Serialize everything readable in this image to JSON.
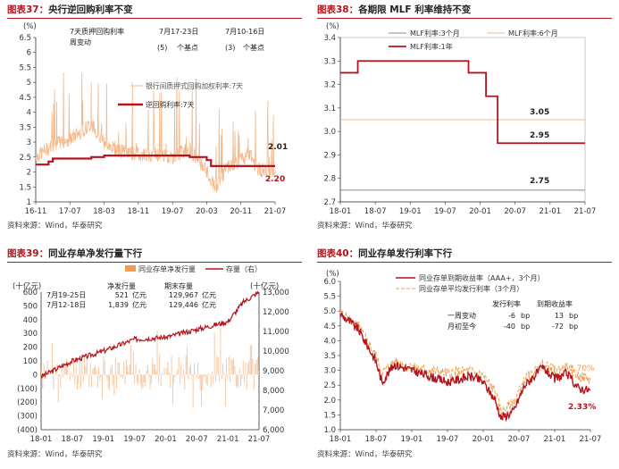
{
  "charts": [
    {
      "id": "p37",
      "fig_label": "图表37：",
      "title": "央行逆回购利率不变",
      "source": "资料来源：Wind，华泰研究",
      "unit_label": "(%)",
      "legend": [
        "银行间质押式回购加权利率:7天",
        "逆回购利率:7天"
      ],
      "ann_header": [
        "7天质押回购利率",
        "周变动"
      ],
      "ann_cols": [
        {
          "date": "7月17-23日",
          "val": "(5)",
          "unit": "个基点"
        },
        {
          "date": "7月10-16日",
          "val": "(3)",
          "unit": "个基点"
        }
      ],
      "end_labels": [
        "2.01",
        "2.20"
      ]
    },
    {
      "id": "p38",
      "fig_label": "图表38：",
      "title": "各期限 MLF 利率维持不变",
      "source": "资料来源：Wind，华泰研究",
      "unit_label": "(%)",
      "legend": [
        "MLF利率:3个月",
        "MLF利率:6个月",
        "MLF利率:1年"
      ],
      "end_labels": [
        "3.05",
        "2.95",
        "2.75"
      ]
    },
    {
      "id": "p39",
      "fig_label": "图表39：",
      "title": "同业存单净发行量下行",
      "source": "资料来源：Wind，华泰研究",
      "unit_left": "(十亿元)",
      "unit_right": "(十亿元)",
      "legend": [
        "同业存单净发行量",
        "存量（右）"
      ],
      "tbl_header": [
        "净发行量",
        "期末存量"
      ],
      "tbl_rows": [
        {
          "date": "7月19-25日",
          "net": "521",
          "u1": "亿元",
          "stock": "129,967",
          "u2": "亿元"
        },
        {
          "date": "7月12-18日",
          "net": "1,839",
          "u1": "亿元",
          "stock": "129,446",
          "u2": "亿元"
        }
      ]
    },
    {
      "id": "p40",
      "fig_label": "图表40：",
      "title": "同业存单发行利率下行",
      "source": "资料来源：Wind，华泰研究",
      "unit_label": "(%)",
      "legend": [
        "同业存单到期收益率（AAA+，3个月）",
        "同业存单平均发行利率（3个月）"
      ],
      "tbl_header": [
        "发行利率",
        "到期收益率"
      ],
      "tbl_rows": [
        {
          "label": "一周变动",
          "a": "-6",
          "ua": "bp",
          "b": "13",
          "ub": "bp"
        },
        {
          "label": "月初至今",
          "a": "-40",
          "ua": "bp",
          "b": "-72",
          "ub": "bp"
        }
      ],
      "end_labels": [
        "2.70%",
        "2.33%"
      ]
    }
  ],
  "colors": {
    "red": "#b5141c",
    "orange": "#f39c4a",
    "peach": "#f5b88a",
    "grey": "#888888"
  },
  "chart_data": [
    {
      "type": "line",
      "ylim": [
        1,
        6.5
      ],
      "yticks": [
        "1",
        "1.5",
        "2",
        "2.5",
        "3",
        "3.5",
        "4",
        "4.5",
        "5",
        "5.5",
        "6",
        "6.5"
      ],
      "xticks": [
        "16-11",
        "17-07",
        "18-03",
        "18-11",
        "19-07",
        "20-03",
        "20-11",
        "21-07"
      ],
      "x_start": "2016-11",
      "x_end": "2021-07",
      "series": [
        {
          "name": "逆回购利率:7天",
          "steps": [
            [
              "2016-11",
              2.25
            ],
            [
              "2017-02",
              2.35
            ],
            [
              "2017-03",
              2.45
            ],
            [
              "2017-12",
              2.5
            ],
            [
              "2018-03",
              2.55
            ],
            [
              "2019-11",
              2.5
            ],
            [
              "2020-03",
              2.4
            ],
            [
              "2020-04",
              2.2
            ],
            [
              "2021-07",
              2.2
            ]
          ]
        },
        {
          "name": "银行间质押式回购加权利率:7天",
          "approx": true,
          "points": [
            [
              "2016-11",
              2.5
            ],
            [
              "2017-03",
              2.9
            ],
            [
              "2017-07",
              3.1
            ],
            [
              "2017-12",
              3.6
            ],
            [
              "2018-03",
              3.0
            ],
            [
              "2018-07",
              2.7
            ],
            [
              "2018-11",
              2.6
            ],
            [
              "2019-03",
              2.6
            ],
            [
              "2019-07",
              2.5
            ],
            [
              "2019-11",
              2.8
            ],
            [
              "2020-03",
              2.0
            ],
            [
              "2020-05",
              1.45
            ],
            [
              "2020-08",
              2.2
            ],
            [
              "2020-11",
              2.4
            ],
            [
              "2021-01",
              2.6
            ],
            [
              "2021-03",
              2.1
            ],
            [
              "2021-07",
              2.01
            ]
          ]
        }
      ]
    },
    {
      "type": "line",
      "ylim": [
        2.7,
        3.4
      ],
      "yticks": [
        "2.7",
        "2.8",
        "2.9",
        "3.0",
        "3.1",
        "3.2",
        "3.3",
        "3.4"
      ],
      "xticks": [
        "18-01",
        "18-07",
        "19-01",
        "19-07",
        "20-01",
        "20-07",
        "21-01",
        "21-07"
      ],
      "x_start": "2018-01",
      "x_end": "2021-07",
      "series": [
        {
          "name": "MLF利率:3个月",
          "steps": [
            [
              "2018-01",
              2.75
            ],
            [
              "2021-07",
              2.75
            ]
          ]
        },
        {
          "name": "MLF利率:6个月",
          "steps": [
            [
              "2018-01",
              3.05
            ],
            [
              "2021-07",
              3.05
            ]
          ]
        },
        {
          "name": "MLF利率:1年",
          "steps": [
            [
              "2018-01",
              3.25
            ],
            [
              "2018-04",
              3.3
            ],
            [
              "2019-11",
              3.25
            ],
            [
              "2020-02",
              3.15
            ],
            [
              "2020-04",
              2.95
            ],
            [
              "2021-07",
              2.95
            ]
          ]
        }
      ]
    },
    {
      "type": "bar+line",
      "ylim_left": [
        -400,
        600
      ],
      "yticks_left": [
        "(400)",
        "(300)",
        "(200)",
        "(100)",
        "0",
        "100",
        "200",
        "300",
        "400",
        "500",
        "600"
      ],
      "ylim_right": [
        6000,
        13000
      ],
      "yticks_right": [
        "6,000",
        "7,000",
        "8,000",
        "9,000",
        "10,000",
        "11,000",
        "12,000",
        "13,000"
      ],
      "xticks": [
        "18-01",
        "18-07",
        "19-01",
        "19-07",
        "20-01",
        "20-07",
        "21-01",
        "21-07"
      ],
      "x_start": "2018-01",
      "x_end": "2021-07",
      "series": [
        {
          "name": "存量（右）",
          "approx": true,
          "points": [
            [
              "2018-01",
              8700
            ],
            [
              "2018-07",
              9500
            ],
            [
              "2019-01",
              10000
            ],
            [
              "2019-07",
              10600
            ],
            [
              "2020-01",
              10700
            ],
            [
              "2020-07",
              11100
            ],
            [
              "2021-01",
              11500
            ],
            [
              "2021-04",
              12500
            ],
            [
              "2021-07",
              13000
            ]
          ]
        },
        {
          "name": "同业存单净发行量",
          "approx": true,
          "bars_range": [
            -250,
            400
          ]
        }
      ]
    },
    {
      "type": "line",
      "ylim": [
        1,
        6
      ],
      "yticks": [
        "1.0",
        "1.5",
        "2.0",
        "2.5",
        "3.0",
        "3.5",
        "4.0",
        "4.5",
        "5.0",
        "5.5",
        "6.0"
      ],
      "xticks": [
        "18-01",
        "18-07",
        "19-01",
        "19-07",
        "20-01",
        "20-07",
        "21-01",
        "21-07"
      ],
      "x_start": "2018-01",
      "x_end": "2021-07",
      "series": [
        {
          "name": "同业存单到期收益率（AAA+，3个月）",
          "approx": true,
          "points": [
            [
              "2018-01",
              4.9
            ],
            [
              "2018-04",
              4.4
            ],
            [
              "2018-07",
              3.3
            ],
            [
              "2018-08",
              2.6
            ],
            [
              "2018-10",
              3.2
            ],
            [
              "2019-01",
              3.0
            ],
            [
              "2019-04",
              2.8
            ],
            [
              "2019-07",
              2.6
            ],
            [
              "2019-11",
              2.8
            ],
            [
              "2020-01",
              2.6
            ],
            [
              "2020-03",
              2.0
            ],
            [
              "2020-04",
              1.4
            ],
            [
              "2020-06",
              1.6
            ],
            [
              "2020-08",
              2.5
            ],
            [
              "2020-11",
              3.1
            ],
            [
              "2021-01",
              2.7
            ],
            [
              "2021-03",
              2.9
            ],
            [
              "2021-05",
              2.4
            ],
            [
              "2021-07",
              2.33
            ]
          ]
        },
        {
          "name": "同业存单平均发行利率（3个月）",
          "approx": true,
          "points": [
            [
              "2018-01",
              4.95
            ],
            [
              "2018-04",
              4.5
            ],
            [
              "2018-07",
              3.5
            ],
            [
              "2018-08",
              2.9
            ],
            [
              "2018-10",
              3.3
            ],
            [
              "2019-01",
              3.1
            ],
            [
              "2019-04",
              3.0
            ],
            [
              "2019-07",
              2.9
            ],
            [
              "2019-11",
              3.0
            ],
            [
              "2020-01",
              2.8
            ],
            [
              "2020-03",
              2.3
            ],
            [
              "2020-04",
              1.6
            ],
            [
              "2020-06",
              1.9
            ],
            [
              "2020-08",
              2.7
            ],
            [
              "2020-11",
              3.2
            ],
            [
              "2021-01",
              3.0
            ],
            [
              "2021-03",
              3.1
            ],
            [
              "2021-05",
              2.8
            ],
            [
              "2021-07",
              2.7
            ]
          ]
        }
      ]
    }
  ]
}
